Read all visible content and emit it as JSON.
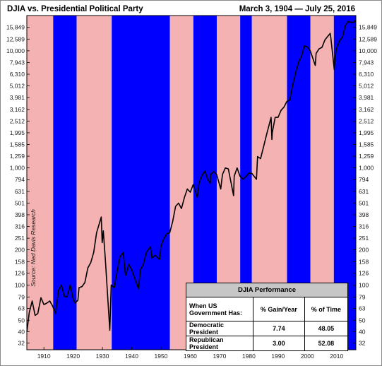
{
  "chart_data": {
    "type": "line",
    "title": "DJIA  vs. Presidential Political Party",
    "subtitle": "March 3, 1904 — July 25, 2016",
    "source_note": "Source: Ned Davis Research",
    "x_range": [
      1904.17,
      2016.57
    ],
    "x_ticks": [
      1910,
      1920,
      1930,
      1940,
      1950,
      1960,
      1970,
      1980,
      1990,
      2000,
      2010
    ],
    "y_scale": "log",
    "y_range": [
      28,
      20000
    ],
    "y_ticks": [
      32,
      40,
      50,
      63,
      79,
      100,
      126,
      158,
      200,
      251,
      316,
      398,
      501,
      631,
      794,
      1000,
      1259,
      1585,
      1995,
      2512,
      3162,
      3981,
      5012,
      6310,
      7943,
      10000,
      12589,
      15849
    ],
    "y_tick_labels": [
      "32",
      "40",
      "50",
      "63",
      "79",
      "100",
      "126",
      "158",
      "200",
      "251",
      "316",
      "398",
      "501",
      "631",
      "794",
      "1,000",
      "1,259",
      "1,585",
      "1,995",
      "2,512",
      "3,162",
      "3,981",
      "5,012",
      "6,310",
      "7,943",
      "10,000",
      "12,589",
      "15,849"
    ],
    "party_periods": [
      {
        "party": "Republican",
        "start": 1904.17,
        "end": 1913.17
      },
      {
        "party": "Democratic",
        "start": 1913.17,
        "end": 1921.17
      },
      {
        "party": "Republican",
        "start": 1921.17,
        "end": 1933.17
      },
      {
        "party": "Democratic",
        "start": 1933.17,
        "end": 1953.05
      },
      {
        "party": "Republican",
        "start": 1953.05,
        "end": 1961.05
      },
      {
        "party": "Democratic",
        "start": 1961.05,
        "end": 1969.05
      },
      {
        "party": "Republican",
        "start": 1969.05,
        "end": 1977.05
      },
      {
        "party": "Democratic",
        "start": 1977.05,
        "end": 1981.05
      },
      {
        "party": "Republican",
        "start": 1981.05,
        "end": 1993.05
      },
      {
        "party": "Democratic",
        "start": 1993.05,
        "end": 2001.05
      },
      {
        "party": "Republican",
        "start": 2001.05,
        "end": 2009.05
      },
      {
        "party": "Democratic",
        "start": 2009.05,
        "end": 2016.57
      }
    ],
    "colors": {
      "Republican": "#f4b2b2",
      "Democratic": "#0000ff",
      "line": "#000000"
    },
    "series": [
      {
        "x": [
          1904.2,
          1905,
          1906,
          1907,
          1907.9,
          1909,
          1910,
          1911,
          1912,
          1913,
          1914,
          1915,
          1916,
          1917,
          1917.9,
          1919,
          1919.9,
          1920.6,
          1921.6,
          1922,
          1923,
          1924,
          1925,
          1926,
          1927,
          1928,
          1929.6,
          1929.9,
          1930.3,
          1931,
          1932.5,
          1933,
          1934,
          1935,
          1936,
          1937.1,
          1937.9,
          1939,
          1940,
          1941,
          1942.3,
          1943,
          1944,
          1945,
          1946.4,
          1946.9,
          1948,
          1949.5,
          1950,
          1951,
          1952,
          1953,
          1954,
          1955,
          1956,
          1957,
          1958,
          1959,
          1960,
          1961,
          1962.4,
          1963,
          1964,
          1965,
          1966,
          1966.8,
          1967,
          1968,
          1969,
          1970.4,
          1971,
          1972,
          1973,
          1974.8,
          1975,
          1976,
          1977,
          1978,
          1979,
          1980,
          1981,
          1982.6,
          1983,
          1984,
          1985,
          1986,
          1987.6,
          1987.9,
          1988,
          1989,
          1990,
          1991,
          1992,
          1993,
          1994,
          1995,
          1996,
          1997,
          1998,
          1999,
          2000,
          2001,
          2002.7,
          2003,
          2004,
          2005,
          2006,
          2007.8,
          2008,
          2009.2,
          2009.5,
          2010,
          2011,
          2012,
          2013,
          2014,
          2015,
          2016,
          2016.57
        ],
        "y": [
          40,
          58,
          73,
          55,
          57,
          78,
          68,
          70,
          73,
          66,
          57,
          90,
          100,
          80,
          79,
          100,
          78,
          70,
          74,
          95,
          97,
          105,
          140,
          155,
          190,
          280,
          381,
          230,
          290,
          165,
          41,
          100,
          95,
          130,
          175,
          190,
          120,
          150,
          135,
          115,
          93,
          135,
          150,
          190,
          212,
          170,
          180,
          165,
          215,
          250,
          275,
          280,
          350,
          470,
          500,
          450,
          560,
          660,
          620,
          720,
          560,
          740,
          860,
          940,
          800,
          740,
          880,
          930,
          880,
          660,
          880,
          1000,
          980,
          580,
          850,
          1000,
          850,
          800,
          840,
          900,
          900,
          800,
          1250,
          1200,
          1500,
          1900,
          2700,
          1750,
          2000,
          2700,
          2700,
          3100,
          3300,
          3700,
          3800,
          5100,
          6500,
          8000,
          9000,
          11000,
          10800,
          10000,
          7500,
          9500,
          10400,
          10700,
          12400,
          14100,
          13000,
          6900,
          9000,
          10500,
          12200,
          13100,
          16500,
          17800,
          17500,
          17500,
          18500
        ]
      }
    ]
  },
  "perf_table": {
    "caption": "DJIA Performance",
    "col_headers": [
      "When US Government Has:",
      "% Gain/Year",
      "% of Time"
    ],
    "rows": [
      [
        "Democratic President",
        "7.74",
        "48.05"
      ],
      [
        "Republican President",
        "3.00",
        "52.08"
      ]
    ]
  }
}
